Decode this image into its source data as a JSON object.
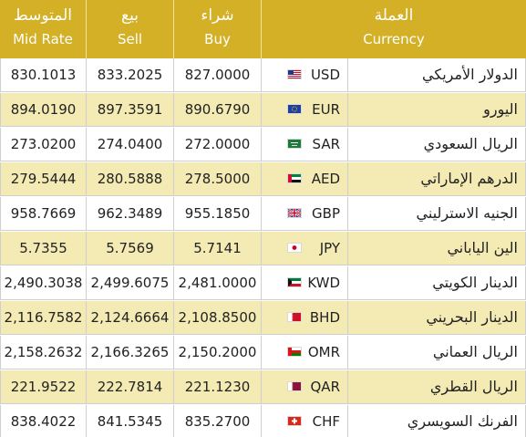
{
  "header": {
    "mid": {
      "ar": "المتوسط",
      "en": "Mid Rate"
    },
    "sell": {
      "ar": "بيع",
      "en": "Sell"
    },
    "buy": {
      "ar": "شراء",
      "en": "Buy"
    },
    "currency": {
      "ar": "العملة",
      "en": "Currency"
    }
  },
  "colors": {
    "header_bg": "#d3b026",
    "alt_row_bg": "#f3eab4"
  },
  "rows": [
    {
      "name": "الدولار الأمريكي",
      "code": "USD",
      "flag": "us-flag-icon",
      "buy": "827.0000",
      "sell": "833.2025",
      "mid": "830.1013"
    },
    {
      "name": "اليورو",
      "code": "EUR",
      "flag": "eu-flag-icon",
      "buy": "890.6790",
      "sell": "897.3591",
      "mid": "894.0190"
    },
    {
      "name": "الريال السعودي",
      "code": "SAR",
      "flag": "sa-flag-icon",
      "buy": "272.0000",
      "sell": "274.0400",
      "mid": "273.0200"
    },
    {
      "name": "الدرهم الإماراتي",
      "code": "AED",
      "flag": "ae-flag-icon",
      "buy": "278.5000",
      "sell": "280.5888",
      "mid": "279.5444"
    },
    {
      "name": "الجنيه الاسترليني",
      "code": "GBP",
      "flag": "gb-flag-icon",
      "buy": "955.1850",
      "sell": "962.3489",
      "mid": "958.7669"
    },
    {
      "name": "الين الياباني",
      "code": "JPY",
      "flag": "jp-flag-icon",
      "buy": "5.7141",
      "sell": "5.7569",
      "mid": "5.7355"
    },
    {
      "name": "الدينار الكويتي",
      "code": "KWD",
      "flag": "kw-flag-icon",
      "buy": "2,481.0000",
      "sell": "2,499.6075",
      "mid": "2,490.3038"
    },
    {
      "name": "الدينار البحريني",
      "code": "BHD",
      "flag": "bh-flag-icon",
      "buy": "2,108.8500",
      "sell": "2,124.6664",
      "mid": "2,116.7582"
    },
    {
      "name": "الريال العماني",
      "code": "OMR",
      "flag": "om-flag-icon",
      "buy": "2,150.2000",
      "sell": "2,166.3265",
      "mid": "2,158.2632"
    },
    {
      "name": "الريال القطري",
      "code": "QAR",
      "flag": "qa-flag-icon",
      "buy": "221.1230",
      "sell": "222.7814",
      "mid": "221.9522"
    },
    {
      "name": "الفرنك السويسري",
      "code": "CHF",
      "flag": "ch-flag-icon",
      "buy": "835.2700",
      "sell": "841.5345",
      "mid": "838.4022"
    }
  ]
}
